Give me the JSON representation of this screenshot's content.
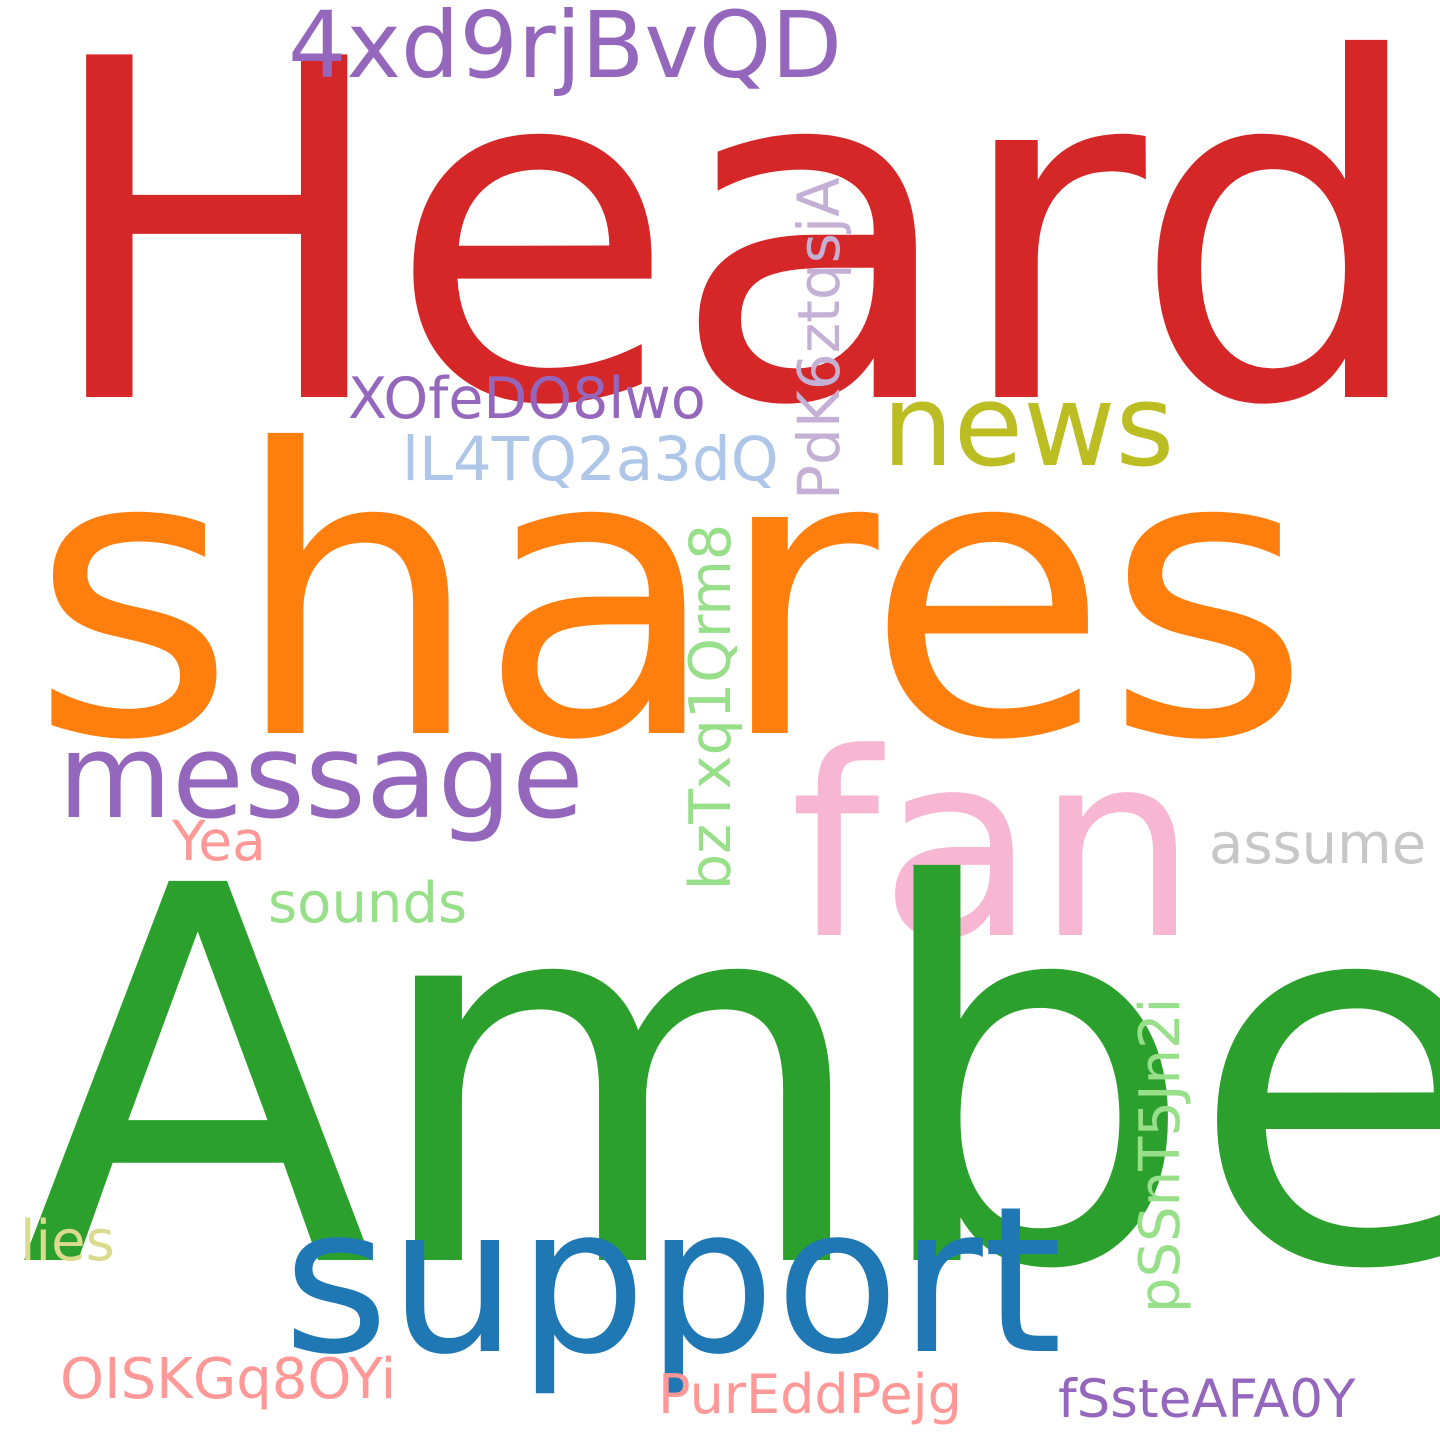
{
  "words": {
    "heard": {
      "text": "Heard",
      "color": "#d62728"
    },
    "shares": {
      "text": "shares",
      "color": "#ff7f0e"
    },
    "amber": {
      "text": "Amber",
      "color": "#2ca02c"
    },
    "fan": {
      "text": "fan",
      "color": "#f7b6d2"
    },
    "support": {
      "text": "support",
      "color": "#1f77b4"
    },
    "message": {
      "text": "message",
      "color": "#9467bd"
    },
    "news": {
      "text": "news",
      "color": "#bcbd22"
    },
    "w4xd9": {
      "text": "4xd9rjBvQD",
      "color": "#9467bd"
    },
    "xofe": {
      "text": "XOfeDO8lwo",
      "color": "#9467bd"
    },
    "ll4t": {
      "text": "lL4TQ2a3dQ",
      "color": "#aec7e8"
    },
    "pdk6": {
      "text": "PdK6ztqsjA",
      "color": "#c5b0d5"
    },
    "bztx": {
      "text": "bzTxq1Qrm8",
      "color": "#98df8a"
    },
    "yea": {
      "text": "Yea",
      "color": "#ff9896"
    },
    "sounds": {
      "text": "sounds",
      "color": "#98df8a"
    },
    "assume": {
      "text": "assume",
      "color": "#c7c7c7"
    },
    "pssn": {
      "text": "pSSnT5Jn2i",
      "color": "#98df8a"
    },
    "lies": {
      "text": "lies",
      "color": "#dbdb8d"
    },
    "oisk": {
      "text": "OISKGq8OYi",
      "color": "#ff9896"
    },
    "pure": {
      "text": "PurEddPejg",
      "color": "#ff9896"
    },
    "fsst": {
      "text": "fSsteAFA0Y",
      "color": "#9467bd"
    }
  }
}
